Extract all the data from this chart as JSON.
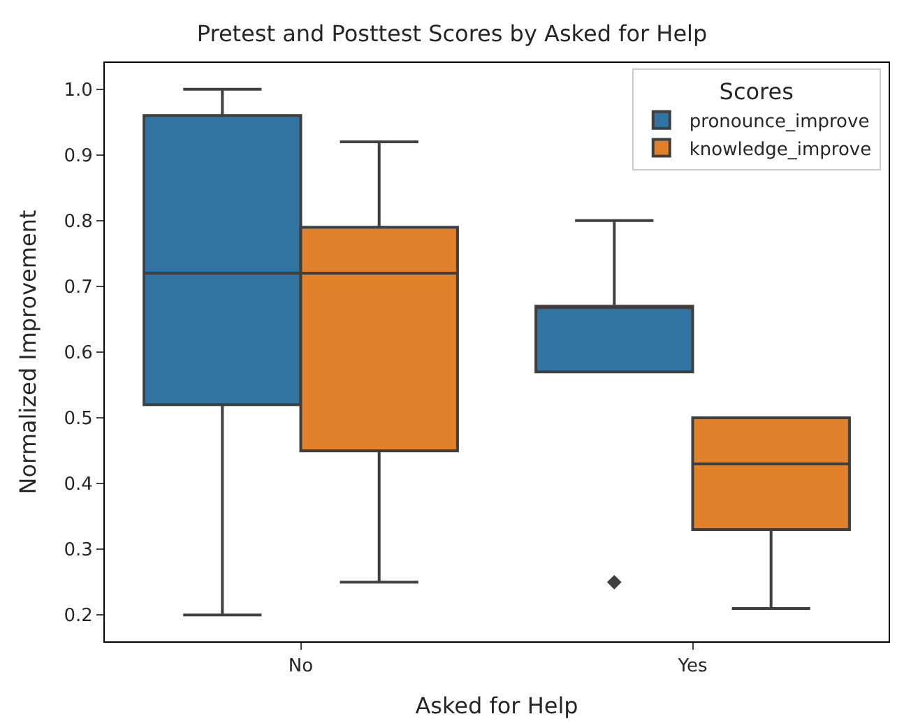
{
  "chart_data": {
    "type": "box",
    "title": "Pretest and Posttest Scores by Asked for Help",
    "xlabel": "Asked for Help",
    "ylabel": "Normalized Improvement",
    "legend_title": "Scores",
    "categories": [
      "No",
      "Yes"
    ],
    "series": [
      {
        "name": "pronounce_improve",
        "color": "#3274a1",
        "boxes": [
          {
            "low": 0.2,
            "q1": 0.52,
            "median": 0.72,
            "q3": 0.96,
            "high": 1.0
          },
          {
            "low": 0.57,
            "q1": 0.57,
            "median": 0.67,
            "q3": 0.67,
            "high": 0.8,
            "outliers": [
              0.25
            ]
          }
        ]
      },
      {
        "name": "knowledge_improve",
        "color": "#e1812c",
        "boxes": [
          {
            "low": 0.25,
            "q1": 0.45,
            "median": 0.72,
            "q3": 0.79,
            "high": 0.92
          },
          {
            "low": 0.21,
            "q1": 0.33,
            "median": 0.43,
            "q3": 0.5,
            "high": 0.5
          }
        ]
      }
    ],
    "ylim": [
      0.16,
      1.04
    ],
    "yticks": [
      0.2,
      0.3,
      0.4,
      0.5,
      0.6,
      0.7,
      0.8,
      0.9,
      {
        "value": 1,
        "label": "1.0"
      }
    ],
    "legend": "top right"
  }
}
